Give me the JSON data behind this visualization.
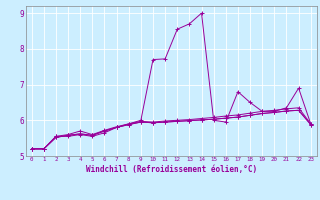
{
  "xlabel": "Windchill (Refroidissement éolien,°C)",
  "background_color": "#cceeff",
  "line_color": "#990099",
  "xlim": [
    -0.5,
    23.5
  ],
  "ylim": [
    5,
    9.2
  ],
  "yticks": [
    5,
    6,
    7,
    8,
    9
  ],
  "xticks": [
    0,
    1,
    2,
    3,
    4,
    5,
    6,
    7,
    8,
    9,
    10,
    11,
    12,
    13,
    14,
    15,
    16,
    17,
    18,
    19,
    20,
    21,
    22,
    23
  ],
  "series": [
    [
      5.2,
      5.2,
      5.55,
      5.55,
      5.6,
      5.55,
      5.65,
      5.8,
      5.9,
      6.0,
      7.7,
      7.72,
      8.55,
      8.7,
      9.0,
      6.0,
      5.95,
      6.8,
      6.5,
      6.25,
      6.25,
      6.35,
      6.9,
      5.9
    ],
    [
      5.2,
      5.2,
      5.55,
      5.6,
      5.7,
      5.6,
      5.72,
      5.82,
      5.9,
      5.97,
      5.95,
      5.98,
      6.0,
      6.02,
      6.05,
      6.08,
      6.12,
      6.15,
      6.2,
      6.25,
      6.28,
      6.32,
      6.35,
      5.9
    ],
    [
      5.2,
      5.2,
      5.52,
      5.58,
      5.62,
      5.58,
      5.7,
      5.8,
      5.88,
      5.95,
      5.93,
      5.95,
      5.97,
      5.99,
      6.01,
      6.03,
      6.06,
      6.09,
      6.14,
      6.19,
      6.22,
      6.26,
      6.28,
      5.88
    ],
    [
      5.2,
      5.2,
      5.52,
      5.58,
      5.62,
      5.58,
      5.7,
      5.8,
      5.88,
      5.95,
      5.93,
      5.95,
      5.97,
      5.99,
      6.01,
      6.03,
      6.06,
      6.09,
      6.14,
      6.19,
      6.22,
      6.26,
      6.28,
      5.88
    ]
  ]
}
